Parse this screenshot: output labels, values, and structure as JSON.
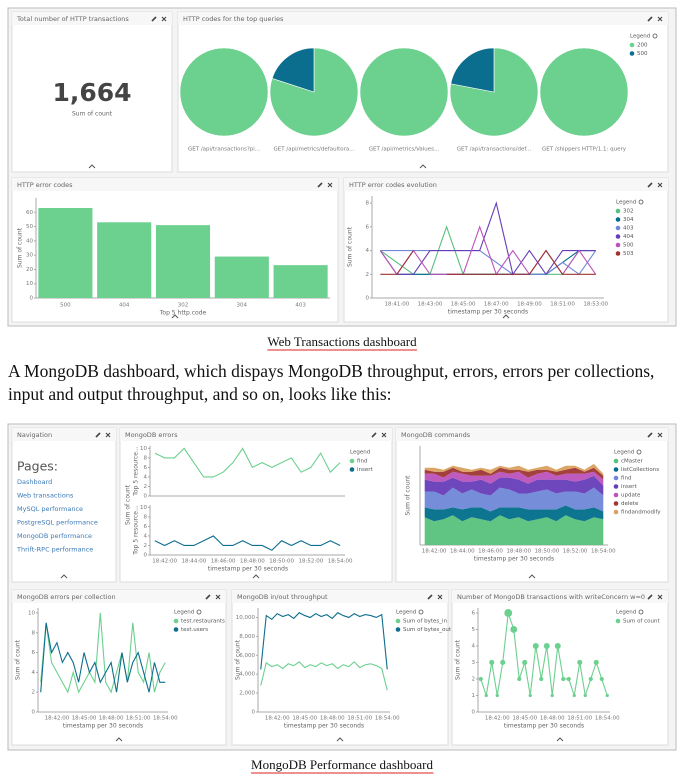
{
  "dashboard1": {
    "metric": {
      "title": "Total number of HTTP transactions",
      "value": "1,664",
      "label": "Sum of count"
    },
    "pies": {
      "type": "pie",
      "title": "HTTP codes for the top queries",
      "legend_title": "Legend",
      "series": [
        {
          "name": "200",
          "color": "#6cd08f"
        },
        {
          "name": "500",
          "color": "#0c6e8e"
        }
      ],
      "pies": [
        {
          "label": "GET /api/transactions?pi...",
          "values": [
            100,
            0
          ]
        },
        {
          "label": "GET /api/metrics/defaultora...",
          "values": [
            80,
            20
          ]
        },
        {
          "label": "GET /api/metrics/Values...",
          "values": [
            100,
            0
          ]
        },
        {
          "label": "GET /api/transactions/def...",
          "values": [
            78,
            22
          ]
        },
        {
          "label": "GET /shippers HTTP/1.1: query",
          "values": [
            100,
            0
          ]
        }
      ]
    },
    "bar": {
      "type": "bar",
      "title": "HTTP error codes",
      "categories": [
        "500",
        "404",
        "302",
        "304",
        "403"
      ],
      "values": [
        63,
        53,
        51,
        29,
        23
      ],
      "color": "#6cd08f",
      "ylim": [
        0,
        70
      ],
      "yticks": [
        0,
        10,
        20,
        30,
        40,
        50,
        60
      ],
      "x_label": "Top 5 http.code",
      "y_label": "Sum of count"
    },
    "evolution": {
      "type": "line",
      "title": "HTTP error codes evolution",
      "legend_title": "Legend",
      "categories": [
        null,
        "18:41:00",
        null,
        "18:43:00",
        null,
        "18:45:00",
        null,
        "18:47:00",
        null,
        "18:49:00",
        null,
        "18:51:00",
        null,
        "18:53:00"
      ],
      "ylim": [
        0,
        8.6
      ],
      "yticks": [
        0,
        2,
        4,
        6,
        8
      ],
      "x_label": "timestamp per 30 seconds",
      "y_label": "Sum of count",
      "series": [
        {
          "name": "302",
          "color": "#57c17b",
          "values": [
            4,
            3,
            2,
            2,
            6,
            2,
            2,
            2,
            2,
            2,
            2,
            2,
            4,
            4
          ]
        },
        {
          "name": "304",
          "color": "#006e8a",
          "values": [
            null,
            2,
            2,
            2,
            2,
            2,
            2,
            2,
            2,
            2,
            2,
            3,
            4,
            4
          ]
        },
        {
          "name": "403",
          "color": "#6f87d8",
          "values": [
            4,
            4,
            4,
            4,
            4,
            4,
            4,
            3,
            2,
            2,
            2,
            3,
            2,
            4
          ]
        },
        {
          "name": "404",
          "color": "#663db8",
          "values": [
            4,
            2,
            2,
            4,
            4,
            4,
            4,
            8,
            2,
            4,
            2,
            4,
            4,
            4
          ]
        },
        {
          "name": "500",
          "color": "#bc52bc",
          "values": [
            4,
            2,
            4,
            2,
            2,
            2,
            6,
            2,
            4,
            2,
            4,
            2,
            4,
            2
          ]
        },
        {
          "name": "503",
          "color": "#9e3533",
          "values": [
            2,
            2,
            4,
            null,
            2,
            2,
            2,
            2,
            2,
            2,
            4,
            2,
            2,
            2
          ]
        }
      ]
    }
  },
  "caption1": "Web Transactions dashboard",
  "paragraph": "A MongoDB dashboard, which dispays MongoDB throughput, errors, errors per collections, input and output throughput, and so on, looks like this:",
  "dashboard2": {
    "navigation": {
      "title": "Navigation",
      "heading": "Pages:",
      "links": [
        "Dashboard",
        "Web transactions",
        "MySQL performance",
        "PostgreSQL performance",
        "MongoDB performance",
        "Thrift-RPC performance"
      ]
    },
    "errors": {
      "title": "MongoDB errors",
      "legend_title": "Legend",
      "y_label": "Sum of count",
      "x_label": "timestamp per 30 seconds",
      "categories": [
        null,
        "18:42:00",
        null,
        null,
        "18:44:00",
        null,
        null,
        "18:46:00",
        null,
        null,
        "18:48:00",
        null,
        null,
        "18:50:00",
        null,
        null,
        "18:52:00",
        null,
        null,
        "18:54:00"
      ],
      "charts": [
        {
          "type": "line",
          "y_label": "Top 5 resource...",
          "ylim": [
            0,
            10.5
          ],
          "yticks": [
            0,
            2,
            4,
            6,
            8,
            10
          ],
          "series": [
            {
              "name": "find",
              "color": "#6cd08f",
              "values": [
                9,
                8,
                8,
                10,
                7,
                4,
                4,
                5,
                7,
                10,
                6,
                7,
                6,
                7,
                8,
                5,
                6,
                9,
                5,
                7
              ]
            }
          ]
        },
        {
          "type": "line",
          "y_label": "Top 5 resource...",
          "ylim": [
            0,
            10.5
          ],
          "yticks": [
            0,
            2,
            4,
            6,
            8,
            10
          ],
          "series": [
            {
              "name": "insert",
              "color": "#0c6e8e",
              "values": [
                3,
                2,
                3,
                2,
                2,
                3,
                4,
                2,
                2,
                3,
                2,
                2,
                1,
                3,
                2,
                3,
                2,
                2,
                3,
                2
              ]
            }
          ]
        }
      ]
    },
    "commands": {
      "type": "area",
      "title": "MongoDB commands",
      "legend_title": "Legend",
      "y_label": "Sum of count",
      "x_label": "timestamp per 30 seconds",
      "categories": [
        null,
        "18:42:00",
        null,
        null,
        "18:44:00",
        null,
        null,
        "18:46:00",
        null,
        null,
        "18:48:00",
        null,
        null,
        "18:50:00",
        null,
        null,
        "18:52:00",
        null,
        null,
        "18:54:00"
      ],
      "ylim": [
        0,
        50
      ],
      "series": [
        {
          "name": "cMaster",
          "color": "#57c17b",
          "values": [
            14,
            12,
            13,
            15,
            12,
            14,
            13,
            12,
            15,
            13,
            14,
            12,
            13,
            14,
            12,
            15,
            13,
            12,
            14,
            13
          ]
        },
        {
          "name": "listCollections",
          "color": "#006e8a",
          "values": [
            5,
            6,
            5,
            4,
            6,
            5,
            6,
            5,
            4,
            6,
            5,
            6,
            5,
            4,
            6,
            5,
            5,
            6,
            5,
            4
          ]
        },
        {
          "name": "find",
          "color": "#6f87d8",
          "values": [
            8,
            9,
            7,
            10,
            8,
            9,
            7,
            8,
            10,
            9,
            7,
            8,
            9,
            10,
            8,
            7,
            9,
            8,
            10,
            8
          ]
        },
        {
          "name": "insert",
          "color": "#663db8",
          "values": [
            6,
            5,
            7,
            5,
            6,
            4,
            7,
            6,
            5,
            6,
            7,
            5,
            6,
            5,
            7,
            6,
            5,
            7,
            6,
            5
          ]
        },
        {
          "name": "update",
          "color": "#bc52bc",
          "values": [
            3,
            4,
            2,
            3,
            4,
            3,
            2,
            4,
            3,
            2,
            4,
            3,
            3,
            4,
            2,
            3,
            4,
            3,
            2,
            3
          ]
        },
        {
          "name": "delete",
          "color": "#9e3533",
          "values": [
            2,
            1,
            3,
            2,
            1,
            2,
            3,
            1,
            2,
            2,
            1,
            3,
            2,
            1,
            2,
            2,
            3,
            1,
            2,
            2
          ]
        },
        {
          "name": "findandmodify",
          "color": "#daa05d",
          "values": [
            1,
            2,
            1,
            1,
            2,
            1,
            1,
            2,
            1,
            1,
            2,
            1,
            1,
            2,
            1,
            2,
            1,
            1,
            2,
            1
          ]
        }
      ]
    },
    "errors_per_collection": {
      "type": "line",
      "title": "MongoDB errors per collection",
      "legend_title": "Legend",
      "y_label": "Sum of count",
      "x_label": "timestamp per 30 seconds",
      "categories": [
        null,
        null,
        null,
        "18:42:00",
        null,
        null,
        null,
        null,
        "18:45:00",
        null,
        null,
        null,
        null,
        "18:48:00",
        null,
        null,
        null,
        null,
        "18:51:00",
        null,
        null,
        null,
        null,
        "18:54:00"
      ],
      "ylim": [
        0,
        10.5
      ],
      "yticks": [
        0,
        2,
        4,
        6,
        8,
        10
      ],
      "series": [
        {
          "name": "test.restaurants",
          "color": "#6cd08f",
          "values": [
            3,
            9,
            5,
            4,
            3,
            2,
            4,
            2,
            3,
            4,
            3,
            10,
            3,
            2,
            4,
            6,
            3,
            9,
            4,
            3,
            6,
            2,
            4,
            5
          ]
        },
        {
          "name": "test.users",
          "color": "#0c6e8e",
          "values": [
            2,
            9,
            6,
            7,
            5,
            6,
            5,
            3,
            6,
            4,
            5,
            3,
            4,
            5,
            2,
            6,
            3,
            5,
            6,
            4,
            2,
            5,
            3,
            3
          ]
        }
      ]
    },
    "throughput": {
      "type": "line",
      "title": "MongoDB in/out throughput",
      "legend_title": "Legend",
      "y_label": "Sum of count",
      "x_label": "timestamp per 30 seconds",
      "categories": [
        null,
        null,
        null,
        "18:42:00",
        null,
        null,
        null,
        null,
        "18:45:00",
        null,
        null,
        null,
        null,
        "18:48:00",
        null,
        null,
        null,
        null,
        "18:51:00",
        null,
        null,
        null,
        null,
        "18:54:00"
      ],
      "ylim": [
        0,
        11000
      ],
      "yticks": [
        0,
        {
          "value": 2000,
          "label": "2,000"
        },
        {
          "value": 4000,
          "label": "4,000"
        },
        {
          "value": 6000,
          "label": "6,000"
        },
        {
          "value": 8000,
          "label": "8,000"
        },
        {
          "value": 10000,
          "label": "10,000"
        }
      ],
      "series": [
        {
          "name": "Sum of bytes_in",
          "color": "#6cd08f",
          "values": [
            2800,
            5200,
            4800,
            5000,
            4600,
            5100,
            4900,
            5300,
            4700,
            5000,
            4800,
            5200,
            4900,
            5100,
            4600,
            5000,
            4800,
            5300,
            4700,
            5000,
            5100,
            4900,
            4600,
            2300
          ]
        },
        {
          "name": "Sum of bytes_out",
          "color": "#0c6e8e",
          "values": [
            4500,
            10200,
            9800,
            10400,
            10100,
            10300,
            9900,
            10500,
            10200,
            10000,
            10400,
            10100,
            10300,
            9900,
            10500,
            10200,
            10000,
            10400,
            10100,
            10300,
            10200,
            10000,
            10300,
            4500
          ]
        }
      ]
    },
    "write_concern": {
      "type": "line",
      "title": "Number of MongoDB transactions with writeConcern w=0",
      "legend_title": "Legend",
      "y_label": "Sum of count",
      "x_label": "timestamp per 30 seconds",
      "categories": [
        null,
        null,
        null,
        "18:42:00",
        null,
        null,
        null,
        null,
        "18:45:00",
        null,
        null,
        null,
        null,
        "18:48:00",
        null,
        null,
        null,
        null,
        "18:51:00",
        null,
        null,
        null,
        null,
        "18:54:00"
      ],
      "ylim": [
        0,
        6.3
      ],
      "yticks": [
        0,
        1,
        2,
        3,
        4,
        5,
        6
      ],
      "dots": true,
      "series": [
        {
          "name": "Sum of count",
          "color": "#6cd08f",
          "values": [
            2,
            1,
            3,
            1,
            3,
            6,
            5,
            2,
            3,
            1,
            4,
            2,
            4,
            1,
            4,
            2,
            2,
            1,
            3,
            1,
            2,
            3,
            2,
            1
          ]
        }
      ]
    }
  },
  "caption2": "MongoDB Performance dashboard"
}
